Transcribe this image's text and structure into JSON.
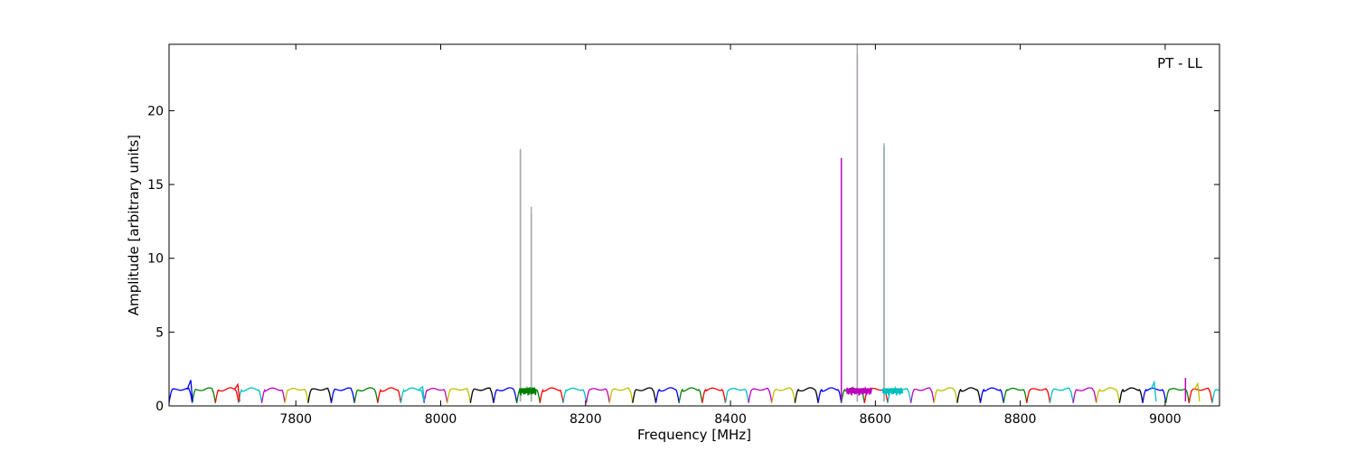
{
  "chart_data": {
    "type": "line",
    "title": "",
    "xlabel": "Frequency [MHz]",
    "ylabel": "Amplitude [arbitrary units]",
    "annotation": "PT - LL",
    "xlim": [
      7625,
      9075
    ],
    "ylim": [
      0,
      24.5
    ],
    "xticks": [
      7800,
      8000,
      8200,
      8400,
      8600,
      8800,
      9000
    ],
    "yticks": [
      0,
      5,
      10,
      15,
      20
    ],
    "grid": false,
    "legend": "none",
    "subband_width": 32,
    "subband_start": 7625,
    "subband_end": 9075,
    "baseline_level": 1.1,
    "color_cycle": [
      "#0000ff",
      "#008000",
      "#ff0000",
      "#00bfbf",
      "#bf00bf",
      "#bfbf00",
      "#000000"
    ],
    "spikes": [
      {
        "x": 8110,
        "y": 17.3,
        "color": "#008000"
      },
      {
        "x": 8125,
        "y": 13.0,
        "color": "#008000"
      },
      {
        "x": 8125,
        "y": 13.5,
        "color": "#aaaaaa"
      },
      {
        "x": 8110,
        "y": 17.4,
        "color": "#aaaaaa"
      },
      {
        "x": 8553,
        "y": 16.8,
        "color": "#bf00bf"
      },
      {
        "x": 8575,
        "y": 23.8,
        "color": "#bf00bf"
      },
      {
        "x": 8575,
        "y": 24.5,
        "color": "#aaaaaa"
      },
      {
        "x": 8612,
        "y": 17.6,
        "color": "#00bfbf"
      },
      {
        "x": 8612,
        "y": 17.8,
        "color": "#aaaaaa"
      },
      {
        "x": 9028,
        "y": 1.9,
        "color": "#bf00bf"
      }
    ],
    "bumps": [
      {
        "x": 7655,
        "y": 1.75,
        "color": "#0000ff"
      },
      {
        "x": 7720,
        "y": 1.45,
        "color": "#ff0000"
      },
      {
        "x": 7975,
        "y": 1.3,
        "color": "#00bfbf"
      },
      {
        "x": 8985,
        "y": 1.6,
        "color": "#00bfbf"
      },
      {
        "x": 9045,
        "y": 1.5,
        "color": "#bfbf00"
      }
    ]
  }
}
